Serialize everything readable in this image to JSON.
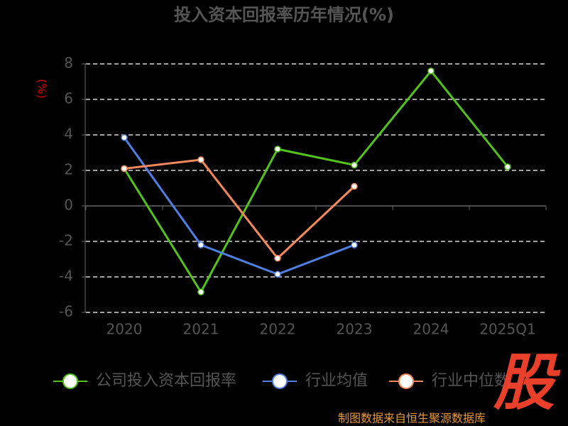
{
  "chart_data": {
    "type": "line",
    "title": "投入资本回报率历年情况(%)",
    "y_label": "(%)",
    "categories": [
      "2020",
      "2021",
      "2022",
      "2023",
      "2024",
      "2025Q1"
    ],
    "series": [
      {
        "name": "公司投入资本回报率",
        "color": "#52c41a",
        "values": [
          2.1,
          -4.85,
          3.2,
          2.3,
          7.6,
          2.2
        ]
      },
      {
        "name": "行业均值",
        "color": "#4f7fe0",
        "values": [
          3.85,
          -2.2,
          -3.85,
          -2.2,
          null,
          null
        ]
      },
      {
        "name": "行业中位数",
        "color": "#f5895a",
        "values": [
          2.1,
          2.6,
          -2.95,
          1.1,
          null,
          null
        ]
      }
    ],
    "ylim": [
      -6,
      8
    ],
    "yticks": [
      -6,
      -4,
      -2,
      0,
      2,
      4,
      6,
      8
    ],
    "grid": true,
    "logo": "股",
    "source": "制图数据来自恒生聚源数据库"
  }
}
